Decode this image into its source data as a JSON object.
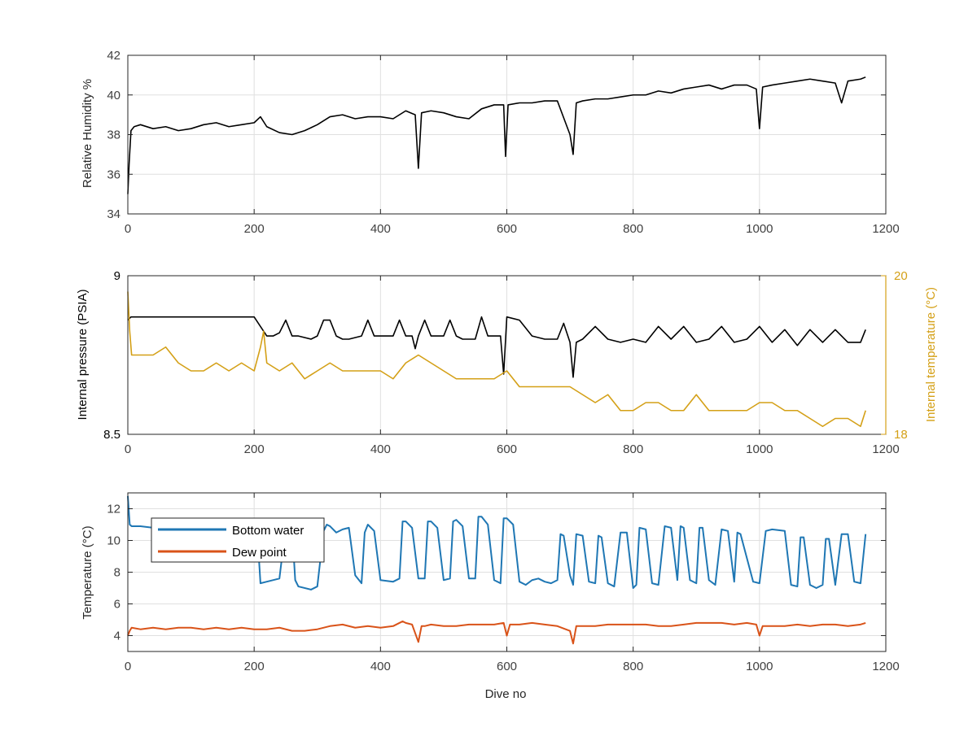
{
  "figure": {
    "xlabel": "Dive no"
  },
  "colors": {
    "black": "#000000",
    "temperature": "#D4A017",
    "bottom_water": "#1F77B4",
    "dew_point": "#D95319",
    "grid": "#E0E0E0",
    "axis": "#262626",
    "tick_text": "#404040"
  },
  "chart_data": [
    {
      "id": "humidity",
      "type": "line",
      "xlabel": "",
      "ylabel": "Relative Humidity %",
      "xlim": [
        0,
        1200
      ],
      "ylim": [
        34,
        42
      ],
      "xticks": [
        0,
        200,
        400,
        600,
        800,
        1000,
        1200
      ],
      "yticks": [
        34,
        36,
        38,
        40,
        42
      ],
      "grid": true,
      "series": [
        {
          "color": "#000000",
          "x": [
            0,
            2,
            5,
            10,
            20,
            40,
            60,
            80,
            100,
            120,
            140,
            160,
            180,
            200,
            210,
            220,
            240,
            260,
            280,
            300,
            320,
            340,
            360,
            380,
            400,
            420,
            440,
            455,
            460,
            465,
            480,
            500,
            520,
            540,
            560,
            580,
            595,
            598,
            602,
            620,
            640,
            660,
            680,
            700,
            705,
            710,
            720,
            740,
            760,
            780,
            800,
            820,
            840,
            860,
            880,
            900,
            920,
            940,
            960,
            980,
            995,
            1000,
            1005,
            1020,
            1040,
            1060,
            1080,
            1100,
            1120,
            1130,
            1140,
            1160,
            1168
          ],
          "y": [
            35.0,
            36.5,
            38.2,
            38.4,
            38.5,
            38.3,
            38.4,
            38.2,
            38.3,
            38.5,
            38.6,
            38.4,
            38.5,
            38.6,
            38.9,
            38.4,
            38.1,
            38.0,
            38.2,
            38.5,
            38.9,
            39.0,
            38.8,
            38.9,
            38.9,
            38.8,
            39.2,
            39.0,
            36.3,
            39.1,
            39.2,
            39.1,
            38.9,
            38.8,
            39.3,
            39.5,
            39.5,
            36.9,
            39.5,
            39.6,
            39.6,
            39.7,
            39.7,
            38.0,
            37.0,
            39.6,
            39.7,
            39.8,
            39.8,
            39.9,
            40.0,
            40.0,
            40.2,
            40.1,
            40.3,
            40.4,
            40.5,
            40.3,
            40.5,
            40.5,
            40.3,
            38.3,
            40.4,
            40.5,
            40.6,
            40.7,
            40.8,
            40.7,
            40.6,
            39.6,
            40.7,
            40.8,
            40.9
          ]
        }
      ]
    },
    {
      "id": "pressure",
      "type": "line",
      "xlabel": "",
      "ylabel": "Internal pressure (PSIA)",
      "y2label": "Internal temperature (°C)",
      "xlim": [
        0,
        1200
      ],
      "ylim": [
        8.5,
        9
      ],
      "y2lim": [
        18,
        20
      ],
      "xticks": [
        0,
        200,
        400,
        600,
        800,
        1000,
        1200
      ],
      "yticks": [
        8.5,
        9
      ],
      "y2ticks": [
        18,
        20
      ],
      "grid": true,
      "series": [
        {
          "axis": "left",
          "color": "#000000",
          "x": [
            0,
            5,
            20,
            60,
            100,
            140,
            180,
            200,
            210,
            220,
            230,
            240,
            250,
            260,
            270,
            290,
            300,
            310,
            320,
            330,
            340,
            350,
            370,
            380,
            390,
            400,
            420,
            430,
            440,
            450,
            455,
            460,
            470,
            480,
            490,
            500,
            510,
            520,
            530,
            550,
            560,
            570,
            580,
            590,
            595,
            600,
            620,
            640,
            660,
            680,
            690,
            700,
            705,
            710,
            720,
            740,
            760,
            780,
            800,
            820,
            840,
            860,
            880,
            900,
            920,
            940,
            960,
            980,
            1000,
            1020,
            1040,
            1060,
            1080,
            1100,
            1120,
            1140,
            1160,
            1168
          ],
          "y": [
            8.86,
            8.87,
            8.87,
            8.87,
            8.87,
            8.87,
            8.87,
            8.87,
            8.84,
            8.81,
            8.81,
            8.82,
            8.86,
            8.81,
            8.81,
            8.8,
            8.81,
            8.86,
            8.86,
            8.81,
            8.8,
            8.8,
            8.81,
            8.86,
            8.81,
            8.81,
            8.81,
            8.86,
            8.81,
            8.81,
            8.77,
            8.81,
            8.86,
            8.81,
            8.81,
            8.81,
            8.86,
            8.81,
            8.8,
            8.8,
            8.87,
            8.81,
            8.81,
            8.81,
            8.69,
            8.87,
            8.86,
            8.81,
            8.8,
            8.8,
            8.85,
            8.79,
            8.68,
            8.79,
            8.8,
            8.84,
            8.8,
            8.79,
            8.8,
            8.79,
            8.84,
            8.8,
            8.84,
            8.79,
            8.8,
            8.84,
            8.79,
            8.8,
            8.84,
            8.79,
            8.83,
            8.78,
            8.83,
            8.79,
            8.83,
            8.79,
            8.79,
            8.83
          ]
        },
        {
          "axis": "right",
          "color": "#D4A017",
          "x": [
            0,
            3,
            6,
            20,
            40,
            60,
            80,
            100,
            120,
            140,
            160,
            180,
            200,
            210,
            215,
            220,
            240,
            260,
            280,
            300,
            320,
            340,
            360,
            380,
            400,
            420,
            440,
            460,
            480,
            500,
            520,
            540,
            560,
            580,
            600,
            620,
            640,
            660,
            680,
            700,
            720,
            740,
            760,
            780,
            800,
            820,
            840,
            860,
            880,
            900,
            920,
            940,
            960,
            980,
            1000,
            1020,
            1040,
            1060,
            1080,
            1100,
            1120,
            1140,
            1160,
            1168
          ],
          "y": [
            19.8,
            19.3,
            19.0,
            19.0,
            19.0,
            19.1,
            18.9,
            18.8,
            18.8,
            18.9,
            18.8,
            18.9,
            18.8,
            19.1,
            19.3,
            18.9,
            18.8,
            18.9,
            18.7,
            18.8,
            18.9,
            18.8,
            18.8,
            18.8,
            18.8,
            18.7,
            18.9,
            19.0,
            18.9,
            18.8,
            18.7,
            18.7,
            18.7,
            18.7,
            18.8,
            18.6,
            18.6,
            18.6,
            18.6,
            18.6,
            18.5,
            18.4,
            18.5,
            18.3,
            18.3,
            18.4,
            18.4,
            18.3,
            18.3,
            18.5,
            18.3,
            18.3,
            18.3,
            18.3,
            18.4,
            18.4,
            18.3,
            18.3,
            18.2,
            18.1,
            18.2,
            18.2,
            18.1,
            18.3
          ]
        }
      ]
    },
    {
      "id": "temperature",
      "type": "line",
      "xlabel": "Dive no",
      "ylabel": "Temperature (°C)",
      "xlim": [
        0,
        1200
      ],
      "ylim": [
        3,
        13
      ],
      "xticks": [
        0,
        200,
        400,
        600,
        800,
        1000,
        1200
      ],
      "yticks": [
        4,
        6,
        8,
        10,
        12
      ],
      "grid": true,
      "legend": "top-left",
      "series": [
        {
          "name": "Bottom water",
          "color": "#1F77B4",
          "x": [
            0,
            3,
            6,
            20,
            40,
            60,
            80,
            100,
            120,
            140,
            160,
            180,
            200,
            205,
            210,
            220,
            240,
            250,
            255,
            260,
            265,
            270,
            290,
            300,
            310,
            315,
            320,
            330,
            340,
            350,
            360,
            370,
            375,
            380,
            390,
            400,
            420,
            430,
            435,
            440,
            450,
            460,
            470,
            475,
            480,
            490,
            500,
            510,
            515,
            520,
            530,
            540,
            550,
            555,
            560,
            570,
            580,
            590,
            595,
            600,
            610,
            620,
            630,
            640,
            650,
            660,
            670,
            680,
            685,
            690,
            700,
            705,
            710,
            720,
            730,
            740,
            745,
            750,
            760,
            770,
            780,
            790,
            800,
            805,
            810,
            820,
            830,
            840,
            850,
            860,
            870,
            875,
            880,
            890,
            900,
            905,
            910,
            920,
            930,
            940,
            950,
            960,
            965,
            970,
            990,
            1000,
            1010,
            1020,
            1040,
            1050,
            1060,
            1065,
            1070,
            1080,
            1090,
            1100,
            1105,
            1110,
            1120,
            1130,
            1140,
            1150,
            1160,
            1168
          ],
          "y": [
            12.8,
            11.0,
            10.9,
            10.9,
            10.8,
            10.8,
            10.8,
            10.8,
            10.8,
            10.7,
            10.8,
            10.7,
            10.7,
            10.5,
            7.3,
            7.4,
            7.6,
            10.9,
            11.0,
            10.8,
            7.5,
            7.1,
            6.9,
            7.1,
            10.6,
            11.0,
            10.9,
            10.5,
            10.7,
            10.8,
            7.8,
            7.3,
            10.5,
            11.0,
            10.6,
            7.5,
            7.4,
            7.6,
            11.2,
            11.2,
            10.8,
            7.6,
            7.6,
            11.2,
            11.2,
            10.8,
            7.5,
            7.6,
            11.2,
            11.3,
            10.9,
            7.6,
            7.6,
            11.5,
            11.5,
            11.0,
            7.5,
            7.3,
            11.4,
            11.4,
            11.0,
            7.4,
            7.2,
            7.5,
            7.6,
            7.4,
            7.3,
            7.5,
            10.4,
            10.3,
            7.8,
            7.2,
            10.4,
            10.3,
            7.4,
            7.3,
            10.3,
            10.2,
            7.3,
            7.1,
            10.5,
            10.5,
            7.0,
            7.2,
            10.8,
            10.7,
            7.3,
            7.2,
            10.9,
            10.8,
            7.5,
            10.9,
            10.8,
            7.5,
            7.3,
            10.8,
            10.8,
            7.5,
            7.2,
            10.7,
            10.6,
            7.4,
            10.5,
            10.4,
            7.4,
            7.3,
            10.6,
            10.7,
            10.6,
            7.2,
            7.1,
            10.2,
            10.2,
            7.2,
            7.0,
            7.2,
            10.1,
            10.1,
            7.2,
            10.4,
            10.4,
            7.4,
            7.3,
            10.4
          ]
        },
        {
          "name": "Dew point",
          "color": "#D95319",
          "x": [
            0,
            3,
            6,
            20,
            40,
            60,
            80,
            100,
            120,
            140,
            160,
            180,
            200,
            220,
            240,
            260,
            280,
            300,
            320,
            340,
            360,
            380,
            400,
            420,
            435,
            440,
            450,
            460,
            465,
            470,
            480,
            500,
            520,
            540,
            560,
            580,
            595,
            600,
            605,
            620,
            640,
            660,
            680,
            700,
            705,
            710,
            720,
            740,
            760,
            780,
            800,
            820,
            840,
            860,
            880,
            900,
            920,
            940,
            960,
            980,
            995,
            1000,
            1005,
            1020,
            1040,
            1060,
            1080,
            1100,
            1120,
            1140,
            1160,
            1168
          ],
          "y": [
            4.0,
            4.3,
            4.5,
            4.4,
            4.5,
            4.4,
            4.5,
            4.5,
            4.4,
            4.5,
            4.4,
            4.5,
            4.4,
            4.4,
            4.5,
            4.3,
            4.3,
            4.4,
            4.6,
            4.7,
            4.5,
            4.6,
            4.5,
            4.6,
            4.9,
            4.8,
            4.7,
            3.6,
            4.6,
            4.6,
            4.7,
            4.6,
            4.6,
            4.7,
            4.7,
            4.7,
            4.8,
            4.0,
            4.7,
            4.7,
            4.8,
            4.7,
            4.6,
            4.3,
            3.5,
            4.6,
            4.6,
            4.6,
            4.7,
            4.7,
            4.7,
            4.7,
            4.6,
            4.6,
            4.7,
            4.8,
            4.8,
            4.8,
            4.7,
            4.8,
            4.7,
            4.0,
            4.6,
            4.6,
            4.6,
            4.7,
            4.6,
            4.7,
            4.7,
            4.6,
            4.7,
            4.8
          ]
        }
      ]
    }
  ]
}
